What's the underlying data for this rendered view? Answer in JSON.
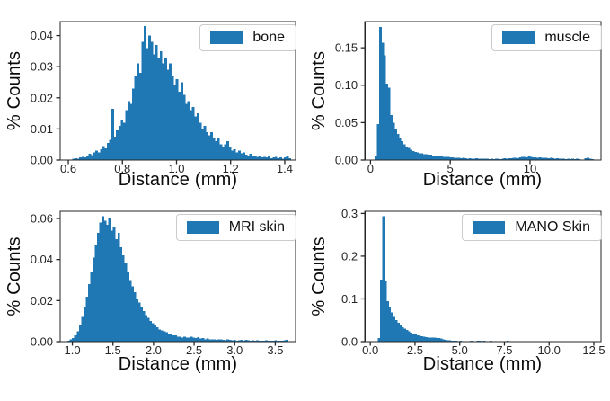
{
  "figure": {
    "background": "#ffffff",
    "bar_color": "#1f77b4",
    "spine_color": "#262626",
    "tick_color": "#262626",
    "label_color": "#0b0b0b",
    "legend_border": "#cbcbcb"
  },
  "chart_data": [
    {
      "id": "bone",
      "type": "bar",
      "histogram": true,
      "legend": "bone",
      "xlabel": "Distance (mm)",
      "ylabel": "% Counts",
      "legend_position": "upper right",
      "grid": false,
      "xlim": [
        0.57,
        1.44
      ],
      "ylim": [
        0,
        0.0445
      ],
      "xticks": [
        0.6,
        0.8,
        1.0,
        1.2,
        1.4
      ],
      "xtick_labels": [
        "0.6",
        "0.8",
        "1.0",
        "1.2",
        "1.4"
      ],
      "yticks": [
        0,
        0.01,
        0.02,
        0.03,
        0.04
      ],
      "ytick_labels": [
        "0.00",
        "0.01",
        "0.02",
        "0.03",
        "0.04"
      ],
      "bins": {
        "start": 0.615,
        "width": 0.0085
      },
      "values_unit": 0.001,
      "values": [
        0.4,
        0.6,
        0.5,
        0.8,
        1,
        0.8,
        1.5,
        2,
        1.6,
        2.4,
        3,
        2.5,
        3.5,
        4.5,
        3.8,
        5.5,
        6.5,
        16.5,
        7.5,
        9.5,
        11,
        13,
        12,
        16,
        19,
        18,
        23,
        27,
        31,
        28,
        38,
        43,
        36,
        40,
        38,
        34,
        37,
        33,
        35,
        31,
        33,
        29,
        31,
        27,
        24,
        26,
        22,
        25,
        21,
        18,
        19,
        16,
        17,
        14,
        15,
        12,
        10,
        11,
        9,
        8,
        9,
        7,
        6,
        7,
        5,
        4,
        5,
        6,
        4,
        3,
        3.5,
        2.5,
        3,
        2.2,
        2.5,
        1.8,
        1.5,
        2,
        1.2,
        1.5,
        1,
        1.2,
        0.8,
        1,
        0.8,
        1.2,
        0.6,
        0.8,
        1,
        0.6,
        0.8,
        0.5,
        0.8,
        1.2,
        0.6
      ]
    },
    {
      "id": "muscle",
      "type": "bar",
      "histogram": true,
      "legend": "muscle",
      "xlabel": "Distance (mm)",
      "ylabel": "% Counts",
      "legend_position": "upper right",
      "grid": false,
      "xlim": [
        -0.35,
        14.45
      ],
      "ylim": [
        0,
        0.185
      ],
      "xticks": [
        0,
        5,
        10
      ],
      "xtick_labels": [
        "0",
        "5",
        "10"
      ],
      "yticks": [
        0,
        0.05,
        0.1,
        0.15
      ],
      "ytick_labels": [
        "0.00",
        "0.05",
        "0.10",
        "0.15"
      ],
      "bins": {
        "start": 0.27,
        "width": 0.137
      },
      "values_unit": 0.001,
      "values": [
        5,
        48,
        178,
        157,
        140,
        102,
        97,
        60,
        50,
        42,
        35,
        29,
        25,
        21,
        18,
        16,
        14,
        12,
        11,
        10,
        9,
        9,
        8,
        8,
        7,
        7,
        6,
        6,
        5,
        5,
        5,
        4,
        4,
        4,
        3.5,
        3.5,
        3,
        3,
        3,
        2.5,
        3,
        2.5,
        2,
        2.5,
        2,
        2,
        2.5,
        2,
        2,
        1.8,
        2,
        1.8,
        1.5,
        1.8,
        1.5,
        1.8,
        2,
        1.5,
        2,
        2.2,
        2,
        2.5,
        2.2,
        2.8,
        3,
        2.5,
        3.5,
        4,
        4.5,
        3.8,
        4.8,
        4.2,
        3.8,
        3.5,
        3.2,
        3.6,
        3,
        2.8,
        3.2,
        2.5,
        2.8,
        2.2,
        2,
        2.4,
        2,
        1.8,
        2,
        1.5,
        1.8,
        1.5,
        2,
        1.5,
        1.8,
        1.4,
        0,
        0,
        2.4,
        2.8,
        2,
        1.5
      ]
    },
    {
      "id": "mri-skin",
      "type": "bar",
      "histogram": true,
      "legend": "MRI skin",
      "xlabel": "Distance (mm)",
      "ylabel": "% Counts",
      "legend_position": "upper right",
      "grid": false,
      "xlim": [
        0.85,
        3.75
      ],
      "ylim": [
        0,
        0.0635
      ],
      "xticks": [
        1.0,
        1.5,
        2.0,
        2.5,
        3.0,
        3.5
      ],
      "xtick_labels": [
        "1.0",
        "1.5",
        "2.0",
        "2.5",
        "3.0",
        "3.5"
      ],
      "yticks": [
        0,
        0.02,
        0.04,
        0.06
      ],
      "ytick_labels": [
        "0.00",
        "0.02",
        "0.04",
        "0.06"
      ],
      "bins": {
        "start": 0.94,
        "width": 0.028
      },
      "values_unit": 0.001,
      "values": [
        0.5,
        1,
        1.8,
        3,
        5,
        8,
        12,
        17,
        22,
        28,
        34,
        41,
        47,
        53,
        58,
        61,
        59,
        57,
        60,
        54,
        56,
        50,
        53,
        46,
        42,
        38,
        34,
        30,
        27,
        24,
        21,
        19,
        17,
        15,
        13,
        11.5,
        10,
        9,
        8,
        7,
        6,
        5.5,
        5,
        4.5,
        4,
        3.5,
        3,
        3,
        2.5,
        2.5,
        2,
        2.5,
        2,
        2,
        2.5,
        2,
        1.8,
        2.2,
        1.5,
        1.8,
        1.2,
        1.5,
        1.2,
        1,
        1.2,
        0.8,
        1,
        1.2,
        0.8,
        0.6,
        1,
        0.8,
        0.6,
        0.8,
        0.5,
        0.6,
        0.8,
        0.5,
        0.8,
        0.6,
        0.5,
        0.6,
        0.4,
        0.6,
        0.5,
        0.4,
        0.5,
        0.6,
        0.4,
        0.5,
        0.4,
        0.6,
        0.5,
        0.4,
        0.5,
        0.6,
        0.8
      ]
    },
    {
      "id": "mano-skin",
      "type": "bar",
      "histogram": true,
      "legend": "MANO Skin",
      "xlabel": "Distance (mm)",
      "ylabel": "% Counts",
      "legend_position": "upper right",
      "grid": false,
      "xlim": [
        -0.3,
        12.9
      ],
      "ylim": [
        0,
        0.305
      ],
      "xticks": [
        0.0,
        2.5,
        5.0,
        7.5,
        10.0,
        12.5
      ],
      "xtick_labels": [
        "0.0",
        "2.5",
        "5.0",
        "7.5",
        "10.0",
        "12.5"
      ],
      "yticks": [
        0,
        0.1,
        0.2,
        0.3
      ],
      "ytick_labels": [
        "0.0",
        "0.1",
        "0.2",
        "0.3"
      ],
      "bins": {
        "start": 0.42,
        "width": 0.12
      },
      "values_unit": 0.001,
      "values": [
        8,
        145,
        293,
        142,
        95,
        80,
        68,
        58,
        50,
        44,
        38,
        34,
        30,
        27,
        24,
        21,
        19,
        17,
        15,
        14,
        13,
        12,
        11,
        10,
        10,
        9,
        9,
        8,
        8,
        7,
        5,
        4,
        3.5,
        3,
        2.5,
        2,
        2,
        1.5,
        1.8,
        1.2,
        1,
        0,
        0,
        2,
        1.5,
        0,
        2.5,
        2,
        0,
        1.8,
        0,
        0,
        2,
        1.5,
        0,
        0,
        1.2,
        0,
        0,
        0,
        2.5,
        1.5
      ]
    }
  ]
}
